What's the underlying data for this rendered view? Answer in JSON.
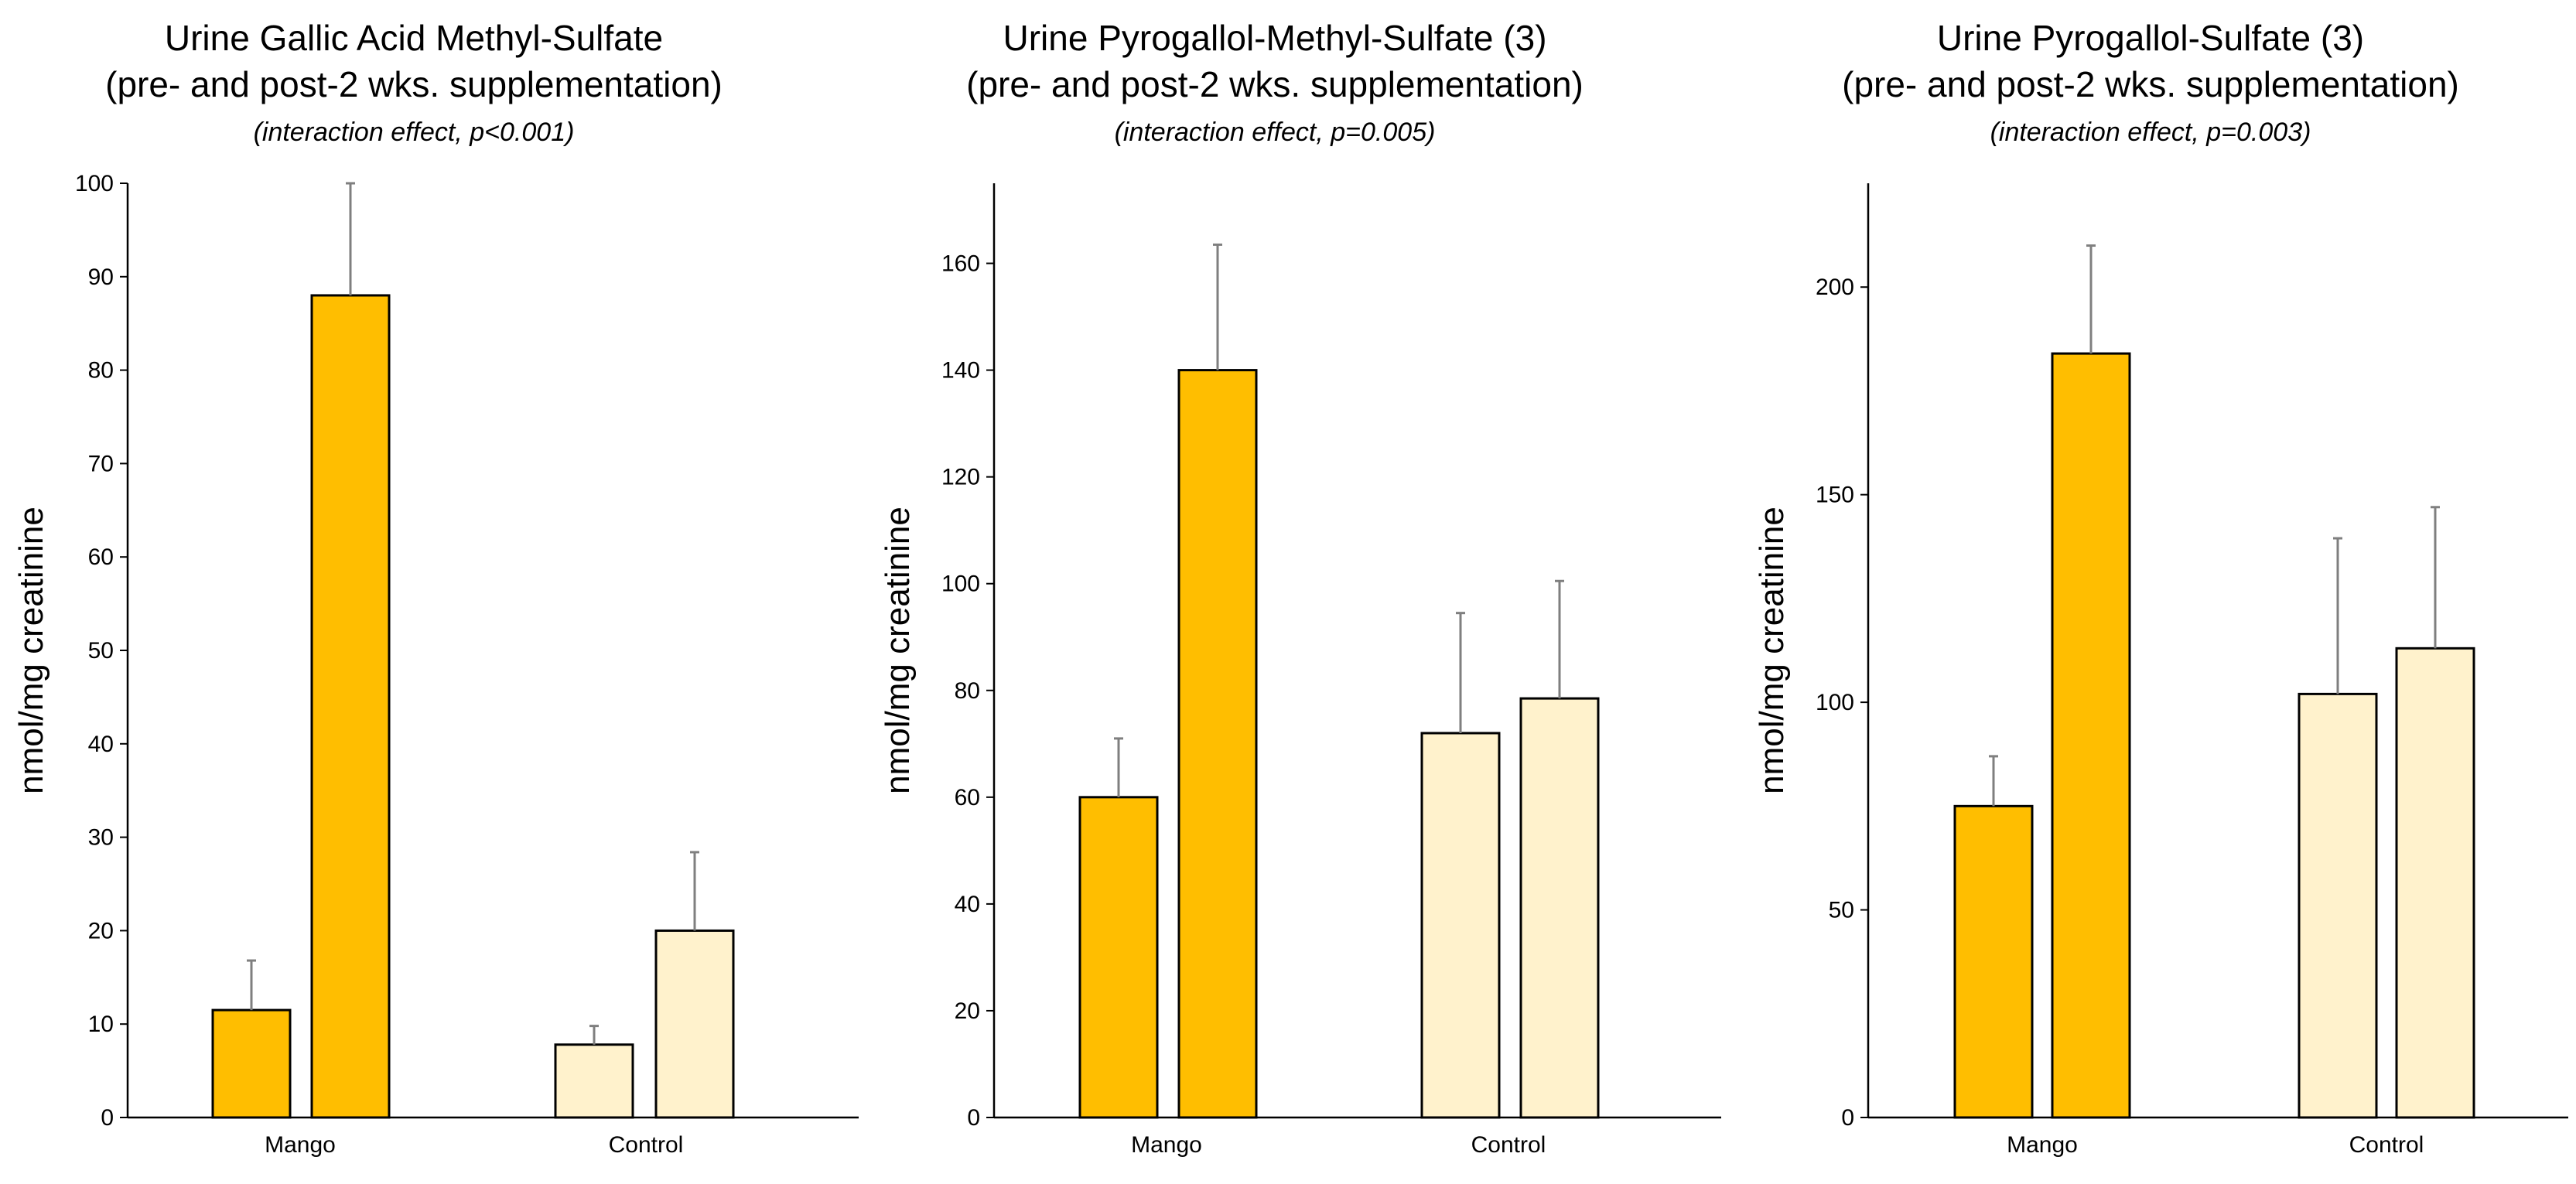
{
  "colors": {
    "mango_fill": "#FFBE00",
    "control_fill": "#FFF2CC",
    "bar_stroke": "#000000",
    "error_bar": "#7F7F7F",
    "axis": "#000000"
  },
  "chart_data": [
    {
      "type": "bar",
      "title_lines": [
        "Urine Gallic Acid Methyl-Sulfate",
        "(pre- and post-2 wks. supplementation)"
      ],
      "subtitle": "(interaction effect, p<0.001)",
      "xlabel": "",
      "ylabel": "nmol/mg creatinine",
      "ylim": [
        0,
        100
      ],
      "yticks": [
        0,
        10,
        20,
        30,
        40,
        50,
        60,
        70,
        80,
        90,
        100
      ],
      "categories": [
        "Mango",
        "Control"
      ],
      "series": [
        {
          "name": "pre",
          "values": [
            11.5,
            7.8
          ],
          "errors": [
            5.3,
            2.0
          ]
        },
        {
          "name": "post",
          "values": [
            88,
            20
          ],
          "errors": [
            12,
            8.4
          ]
        }
      ]
    },
    {
      "type": "bar",
      "title_lines": [
        "Urine Pyrogallol-Methyl-Sulfate (3)",
        "(pre- and post-2 wks. supplementation)"
      ],
      "subtitle": "(interaction effect, p=0.005)",
      "xlabel": "",
      "ylabel": "nmol/mg creatinine",
      "ylim": [
        0,
        175
      ],
      "yticks": [
        0,
        20,
        40,
        60,
        80,
        100,
        120,
        140,
        160
      ],
      "categories": [
        "Mango",
        "Control"
      ],
      "series": [
        {
          "name": "pre",
          "values": [
            60,
            72
          ],
          "errors": [
            11,
            22.5
          ]
        },
        {
          "name": "post",
          "values": [
            140,
            78.5
          ],
          "errors": [
            23.5,
            22
          ]
        }
      ]
    },
    {
      "type": "bar",
      "title_lines": [
        "Urine Pyrogallol-Sulfate (3)",
        "(pre- and post-2 wks. supplementation)"
      ],
      "subtitle": "(interaction effect, p=0.003)",
      "xlabel": "",
      "ylabel": "nmol/mg creatinine",
      "ylim": [
        0,
        225
      ],
      "yticks": [
        0,
        50,
        100,
        150,
        200
      ],
      "categories": [
        "Mango",
        "Control"
      ],
      "series": [
        {
          "name": "pre",
          "values": [
            75,
            102
          ],
          "errors": [
            12,
            37.5
          ]
        },
        {
          "name": "post",
          "values": [
            184,
            113
          ],
          "errors": [
            26,
            34
          ]
        }
      ]
    }
  ]
}
